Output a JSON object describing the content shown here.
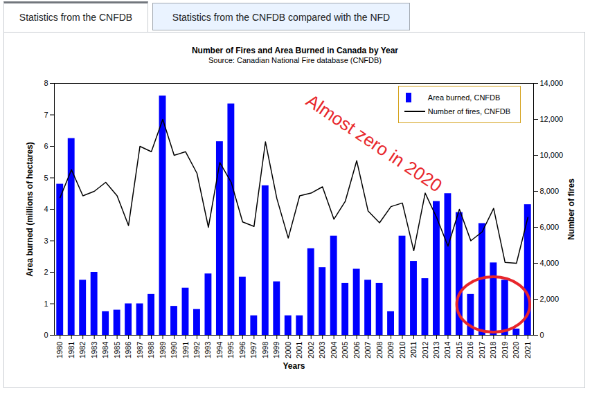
{
  "tabs": [
    "Statistics from the CNFDB",
    "Statistics from the CNFDB compared with the NFD"
  ],
  "chart_data": {
    "type": "bar",
    "title": "Number of Fires and Area Burned in Canada by Year",
    "subtitle": "Source: Canadian National Fire database (CNFDB)",
    "x_label": "Years",
    "y_label": "Area burned (millions of hectares)",
    "y2_label": "Number of fires",
    "categories": [
      "1980",
      "1981",
      "1982",
      "1983",
      "1984",
      "1985",
      "1986",
      "1987",
      "1988",
      "1989",
      "1990",
      "1991",
      "1992",
      "1993",
      "1994",
      "1995",
      "1996",
      "1997",
      "1998",
      "1999",
      "2000",
      "2001",
      "2002",
      "2003",
      "2004",
      "2005",
      "2006",
      "2007",
      "2008",
      "2009",
      "2010",
      "2011",
      "2012",
      "2013",
      "2014",
      "2015",
      "2016",
      "2017",
      "2018",
      "2019",
      "2020",
      "2021"
    ],
    "series": [
      {
        "name": "Area burned, CNFDB",
        "type": "bar",
        "color": "#0000ff",
        "values": [
          4.8,
          6.25,
          1.75,
          2.0,
          0.75,
          0.8,
          1.0,
          1.0,
          1.3,
          7.6,
          0.92,
          1.5,
          0.82,
          1.95,
          6.15,
          7.35,
          1.85,
          0.62,
          4.75,
          1.7,
          0.62,
          0.62,
          2.75,
          2.15,
          3.15,
          1.65,
          2.1,
          1.75,
          1.65,
          0.75,
          3.15,
          2.35,
          1.8,
          4.25,
          4.5,
          3.9,
          1.3,
          3.55,
          2.3,
          1.75,
          0.2,
          4.15
        ]
      },
      {
        "name": "Number of fires, CNFDB",
        "type": "line",
        "color": "#000000",
        "axis": "y2",
        "values": [
          7650,
          9200,
          7750,
          8000,
          8500,
          7750,
          6100,
          10500,
          10200,
          12000,
          10000,
          10200,
          9000,
          6000,
          9600,
          8500,
          6300,
          6050,
          10750,
          7600,
          5400,
          7750,
          7900,
          8250,
          6450,
          7450,
          9700,
          6900,
          6250,
          7150,
          7350,
          4700,
          7900,
          6550,
          4950,
          7000,
          5250,
          5750,
          7050,
          4050,
          4000,
          6550
        ]
      }
    ],
    "ylim": [
      0,
      8
    ],
    "yticks": [
      0,
      1,
      2,
      3,
      4,
      5,
      6,
      7,
      8
    ],
    "y2lim": [
      0,
      14000
    ],
    "y2ticks": [
      0,
      {
        "value": 2000,
        "label": "2,000"
      },
      {
        "value": 4000,
        "label": "4,000"
      },
      {
        "value": 6000,
        "label": "6,000"
      },
      {
        "value": 8000,
        "label": "8,000"
      },
      {
        "value": 10000,
        "label": "10,000"
      },
      {
        "value": 12000,
        "label": "12,000"
      },
      {
        "value": 14000,
        "label": "14,000"
      }
    ],
    "grid": false,
    "legend": "top-right",
    "annotations": [
      {
        "text": "Almost zero in 2020",
        "color": "#e8262b"
      }
    ]
  }
}
